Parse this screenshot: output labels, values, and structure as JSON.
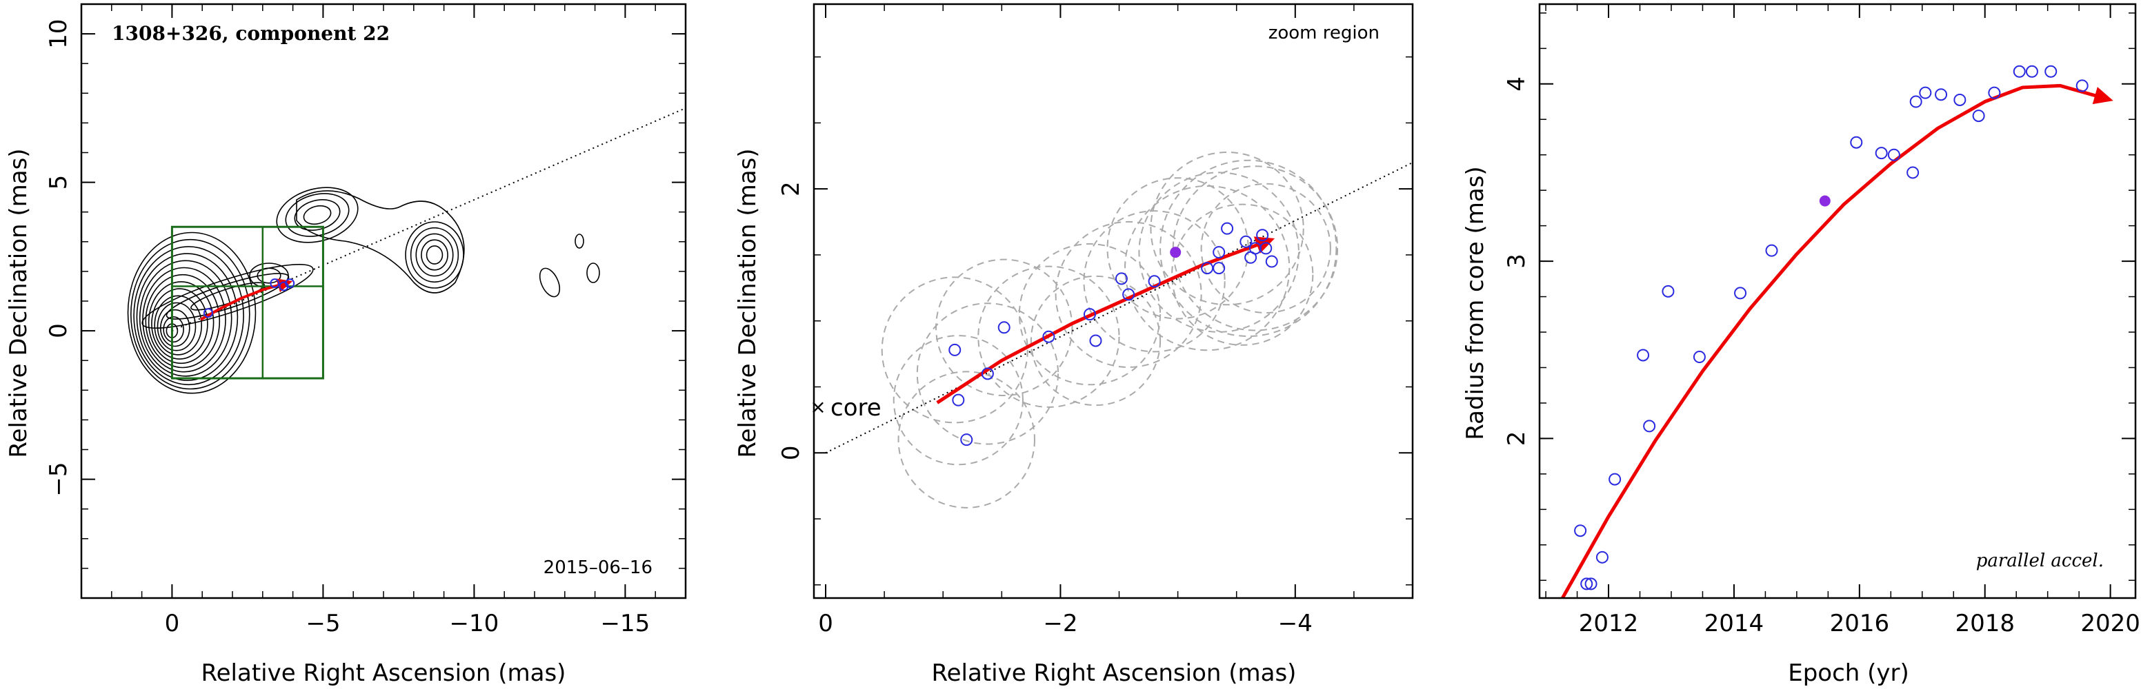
{
  "figure": {
    "colors": {
      "point": "#2a2ae0",
      "highlight": "#8a2be2",
      "trajectory": "#ee0000",
      "box": "#1a6b1a",
      "circle": "#aaaaaa",
      "contour": "#000000"
    }
  },
  "chart_data": [
    {
      "type": "scatter",
      "panel": "left",
      "title": "1308+326, component 22",
      "date_label": "2015–06–16",
      "xlabel": "Relative Right Ascension (mas)",
      "ylabel": "Relative Declination (mas)",
      "xlim": [
        3,
        -17
      ],
      "ylim": [
        -9,
        11
      ],
      "x_ticks": [
        0,
        -5,
        -10,
        -15
      ],
      "x_tick_labels": [
        "0",
        "−5",
        "−10",
        "−15"
      ],
      "y_ticks": [
        -5,
        0,
        5,
        10
      ],
      "y_tick_labels": [
        "−5",
        "0",
        "5",
        "10"
      ],
      "jet_axis": {
        "x": [
          0,
          -17
        ],
        "y": [
          0,
          7.5
        ]
      },
      "zoom_box": {
        "x": [
          0,
          -5
        ],
        "y": [
          -1.6,
          3.5
        ]
      },
      "zoom_box_dividers": {
        "x": -3.0,
        "y": 1.5
      },
      "points": {
        "x": [
          -1.2,
          -3.4,
          -3.7,
          -3.9
        ],
        "y": [
          0.6,
          1.6,
          1.5,
          1.6
        ]
      },
      "trajectory": {
        "x": [
          -0.95,
          -1.6,
          -2.3,
          -3.0,
          -3.75
        ],
        "y": [
          0.38,
          0.75,
          1.1,
          1.38,
          1.6
        ]
      }
    },
    {
      "type": "scatter",
      "panel": "middle",
      "annotation": "zoom region",
      "core_label": "core",
      "xlabel": "Relative Right Ascension (mas)",
      "ylabel": "Relative Declination (mas)",
      "xlim": [
        0.1,
        -5.0
      ],
      "ylim": [
        -1.1,
        3.4
      ],
      "x_ticks": [
        0,
        -2,
        -4
      ],
      "x_tick_labels": [
        "0",
        "−2",
        "−4"
      ],
      "y_ticks": [
        0,
        2
      ],
      "y_tick_labels": [
        "0",
        "2"
      ],
      "jet_axis": {
        "x": [
          0,
          -5.0
        ],
        "y": [
          0,
          2.2
        ]
      },
      "points": {
        "x": [
          -1.1,
          -1.13,
          -1.2,
          -1.38,
          -1.52,
          -1.9,
          -2.25,
          -2.3,
          -2.52,
          -2.58,
          -2.8,
          -3.25,
          -3.35,
          -3.35,
          -3.42,
          -3.58,
          -3.62,
          -3.66,
          -3.72,
          -3.75,
          -3.8
        ],
        "y": [
          0.78,
          0.4,
          0.1,
          0.6,
          0.95,
          0.88,
          1.05,
          0.85,
          1.32,
          1.2,
          1.3,
          1.4,
          1.4,
          1.52,
          1.7,
          1.6,
          1.48,
          1.55,
          1.65,
          1.55,
          1.45
        ]
      },
      "highlight_point": {
        "x": -2.98,
        "y": 1.52
      },
      "uncertainty_circles": [
        {
          "x": -1.1,
          "y": 0.78,
          "r": 0.62
        },
        {
          "x": -1.13,
          "y": 0.4,
          "r": 0.55
        },
        {
          "x": -1.2,
          "y": 0.1,
          "r": 0.58
        },
        {
          "x": -1.38,
          "y": 0.6,
          "r": 0.6
        },
        {
          "x": -1.52,
          "y": 0.95,
          "r": 0.58
        },
        {
          "x": -1.9,
          "y": 0.88,
          "r": 0.6
        },
        {
          "x": -2.25,
          "y": 1.05,
          "r": 0.6
        },
        {
          "x": -2.3,
          "y": 0.85,
          "r": 0.55
        },
        {
          "x": -2.58,
          "y": 1.2,
          "r": 0.62
        },
        {
          "x": -2.8,
          "y": 1.3,
          "r": 0.6
        },
        {
          "x": -3.25,
          "y": 1.4,
          "r": 0.7
        },
        {
          "x": -3.35,
          "y": 1.52,
          "r": 0.68
        },
        {
          "x": -3.42,
          "y": 1.7,
          "r": 0.65
        },
        {
          "x": -3.6,
          "y": 1.55,
          "r": 0.75
        },
        {
          "x": -3.66,
          "y": 1.55,
          "r": 0.7
        },
        {
          "x": -3.75,
          "y": 1.55,
          "r": 0.55
        },
        {
          "x": -3.55,
          "y": 1.35,
          "r": 0.6
        },
        {
          "x": -3.0,
          "y": 1.55,
          "r": 0.6
        }
      ],
      "trajectory": {
        "x": [
          -0.95,
          -1.5,
          -2.1,
          -2.7,
          -3.2,
          -3.75
        ],
        "y": [
          0.38,
          0.7,
          0.98,
          1.22,
          1.42,
          1.6
        ]
      }
    },
    {
      "type": "scatter",
      "panel": "right",
      "annotation": "parallel accel.",
      "xlabel": "Epoch (yr)",
      "ylabel": "Radius from core (mas)",
      "xlim": [
        2010.9,
        2020.4
      ],
      "ylim": [
        1.1,
        4.45
      ],
      "x_ticks": [
        2012,
        2014,
        2016,
        2018,
        2020
      ],
      "x_tick_labels": [
        "2012",
        "2014",
        "2016",
        "2018",
        "2020"
      ],
      "y_ticks": [
        2,
        3,
        4
      ],
      "y_tick_labels": [
        "2",
        "3",
        "4"
      ],
      "points": {
        "x": [
          2011.55,
          2011.65,
          2011.72,
          2011.9,
          2012.1,
          2012.55,
          2012.65,
          2012.95,
          2013.45,
          2014.1,
          2014.6,
          2015.95,
          2016.35,
          2016.55,
          2016.85,
          2016.9,
          2017.05,
          2017.3,
          2017.6,
          2017.9,
          2018.15,
          2018.55,
          2018.75,
          2019.05,
          2019.55
        ],
        "y": [
          1.48,
          1.18,
          1.18,
          1.33,
          1.77,
          2.47,
          2.07,
          2.83,
          2.46,
          2.82,
          3.06,
          3.67,
          3.61,
          3.6,
          3.5,
          3.9,
          3.95,
          3.94,
          3.91,
          3.82,
          3.95,
          4.07,
          4.07,
          4.07,
          3.99
        ]
      },
      "highlight_point": {
        "x": 2015.45,
        "y": 3.34
      },
      "trajectory": {
        "x": [
          2011.25,
          2012.0,
          2012.75,
          2013.5,
          2014.25,
          2015.0,
          2015.75,
          2016.5,
          2017.25,
          2018.0,
          2018.6,
          2019.2,
          2019.9
        ],
        "y": [
          1.09,
          1.56,
          1.99,
          2.38,
          2.73,
          3.04,
          3.32,
          3.55,
          3.75,
          3.9,
          3.98,
          3.99,
          3.92
        ]
      }
    }
  ]
}
